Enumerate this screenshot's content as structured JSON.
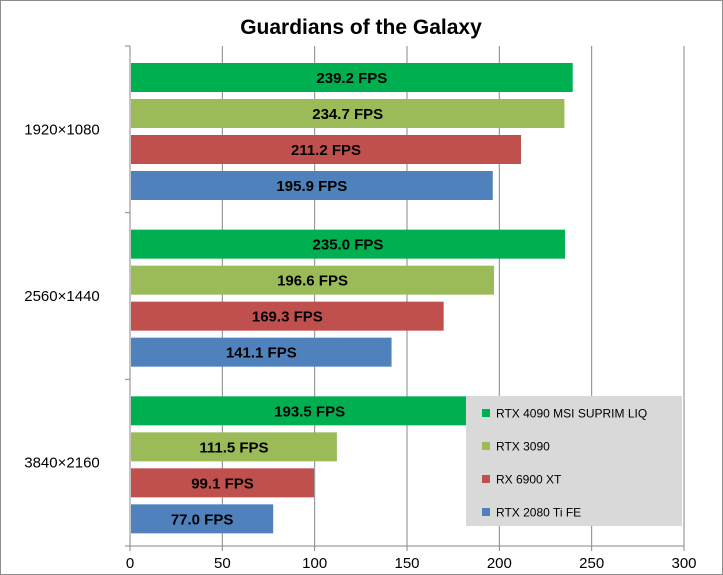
{
  "chart_data": {
    "type": "bar",
    "orientation": "horizontal",
    "title": "Guardians of the Galaxy",
    "xlabel": "",
    "ylabel": "",
    "xlim": [
      0,
      300
    ],
    "xticks": [
      0,
      50,
      100,
      150,
      200,
      250,
      300
    ],
    "grid": "vertical",
    "legend_position": "bottom-right",
    "categories": [
      "1920×1080",
      "2560×1440",
      "3840×2160"
    ],
    "series": [
      {
        "name": "RTX 4090 MSI SUPRIM LIQ",
        "color": "#00b050",
        "values": [
          239.2,
          235.0,
          193.5
        ],
        "labels": [
          "239.2 FPS",
          "235.0 FPS",
          "193.5 FPS"
        ]
      },
      {
        "name": "RTX 3090",
        "color": "#9bbb59",
        "values": [
          234.7,
          196.6,
          111.5
        ],
        "labels": [
          "234.7 FPS",
          "196.6 FPS",
          "111.5 FPS"
        ]
      },
      {
        "name": "RX 6900 XT",
        "color": "#c0504d",
        "values": [
          211.2,
          169.3,
          99.1
        ],
        "labels": [
          "211.2 FPS",
          "169.3 FPS",
          "99.1 FPS"
        ]
      },
      {
        "name": "RTX 2080 Ti FE",
        "color": "#4f81bd",
        "values": [
          195.9,
          141.1,
          77.0
        ],
        "labels": [
          "195.9 FPS",
          "141.1 FPS",
          "77.0 FPS"
        ]
      }
    ]
  }
}
